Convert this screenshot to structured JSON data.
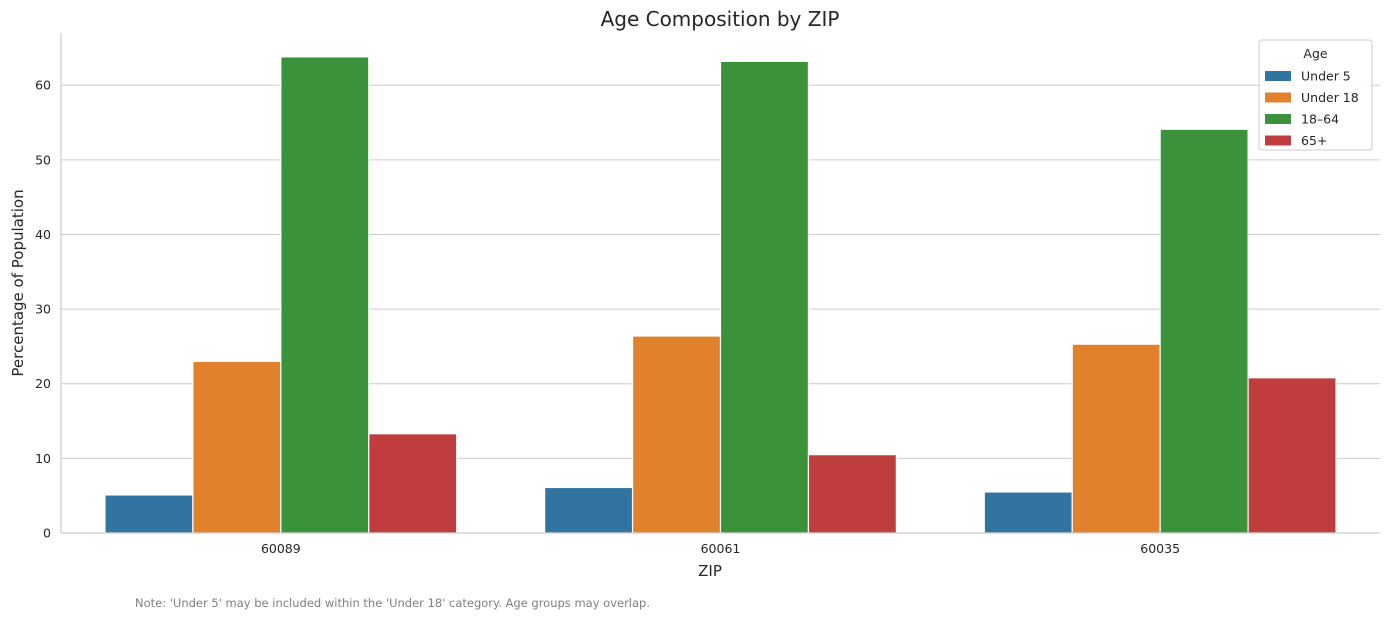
{
  "chart_data": {
    "type": "bar",
    "title": "Age Composition by ZIP",
    "xlabel": "ZIP",
    "ylabel": "Percentage of Population",
    "categories": [
      "60089",
      "60061",
      "60035"
    ],
    "ylim": [
      0,
      67
    ],
    "yticks": [
      0,
      10,
      20,
      30,
      40,
      50,
      60
    ],
    "grid": "horizontal",
    "legend": {
      "title": "Age",
      "placement": "top-right"
    },
    "series": [
      {
        "name": "Under 5",
        "color": "#3274a1",
        "values": [
          5.1,
          6.1,
          5.5
        ]
      },
      {
        "name": "Under 18",
        "color": "#e1812c",
        "values": [
          23.0,
          26.4,
          25.3
        ]
      },
      {
        "name": "18–64",
        "color": "#3a923a",
        "values": [
          63.8,
          63.2,
          54.1
        ]
      },
      {
        "name": "65+",
        "color": "#c03d3e",
        "values": [
          13.3,
          10.5,
          20.8
        ]
      }
    ],
    "note": "Note: 'Under 5' may be included within the 'Under 18' category. Age groups may overlap."
  }
}
